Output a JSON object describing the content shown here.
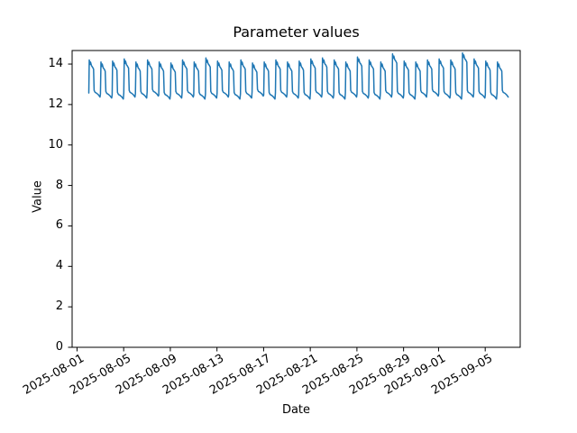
{
  "window": {
    "background": "#ffffff"
  },
  "chart_data": {
    "type": "line",
    "title": "Parameter values",
    "xlabel": "Date",
    "ylabel": "Value",
    "grid": false,
    "legend_position": "none",
    "line_color": "#1f77b4",
    "line_width": 1.5,
    "axes_color": "#000000",
    "x_origin_date": "2025-08-01",
    "xlim_days": [
      -0.42,
      38.0
    ],
    "ylim": [
      0,
      14.67
    ],
    "yticks": [
      0,
      2,
      4,
      6,
      8,
      10,
      12,
      14
    ],
    "xticks": [
      {
        "day": 0,
        "label": "2025-08-01"
      },
      {
        "day": 4,
        "label": "2025-08-05"
      },
      {
        "day": 8,
        "label": "2025-08-09"
      },
      {
        "day": 12,
        "label": "2025-08-13"
      },
      {
        "day": 16,
        "label": "2025-08-17"
      },
      {
        "day": 20,
        "label": "2025-08-21"
      },
      {
        "day": 24,
        "label": "2025-08-25"
      },
      {
        "day": 28,
        "label": "2025-08-29"
      },
      {
        "day": 31,
        "label": "2025-09-01"
      },
      {
        "day": 35,
        "label": "2025-09-05"
      }
    ],
    "series": [
      {
        "name": "parameter-values",
        "start_day_offset": 1,
        "day_shape": [
          {
            "f": 0.01,
            "ref": "low",
            "d": 0.02
          },
          {
            "f": 0.05,
            "ref": "peak",
            "d": 0.0
          },
          {
            "f": 0.1,
            "ref": "peak",
            "d": -0.22
          },
          {
            "f": 0.16,
            "ref": "peak",
            "d": -0.1
          },
          {
            "f": 0.24,
            "ref": "peak",
            "d": -0.28
          },
          {
            "f": 0.33,
            "ref": "peak",
            "d": -0.35
          },
          {
            "f": 0.42,
            "ref": "peak",
            "d": -0.45
          },
          {
            "f": 0.47,
            "ref": "low",
            "d": 0.15
          },
          {
            "f": 0.55,
            "ref": "low",
            "d": 0.05
          },
          {
            "f": 0.7,
            "ref": "low",
            "d": 0.0
          },
          {
            "f": 0.85,
            "ref": "low",
            "d": -0.08
          },
          {
            "f": 0.97,
            "ref": "low",
            "d": -0.18
          }
        ],
        "daily": [
          {
            "date": "2025-08-02",
            "peak": 14.2,
            "low": 12.55
          },
          {
            "date": "2025-08-03",
            "peak": 14.1,
            "low": 12.5
          },
          {
            "date": "2025-08-04",
            "peak": 14.15,
            "low": 12.45
          },
          {
            "date": "2025-08-05",
            "peak": 14.25,
            "low": 12.55
          },
          {
            "date": "2025-08-06",
            "peak": 14.1,
            "low": 12.5
          },
          {
            "date": "2025-08-07",
            "peak": 14.2,
            "low": 12.6
          },
          {
            "date": "2025-08-08",
            "peak": 14.1,
            "low": 12.45
          },
          {
            "date": "2025-08-09",
            "peak": 14.05,
            "low": 12.5
          },
          {
            "date": "2025-08-10",
            "peak": 14.2,
            "low": 12.55
          },
          {
            "date": "2025-08-11",
            "peak": 14.1,
            "low": 12.45
          },
          {
            "date": "2025-08-12",
            "peak": 14.3,
            "low": 12.5
          },
          {
            "date": "2025-08-13",
            "peak": 14.15,
            "low": 12.55
          },
          {
            "date": "2025-08-14",
            "peak": 14.1,
            "low": 12.45
          },
          {
            "date": "2025-08-15",
            "peak": 14.2,
            "low": 12.5
          },
          {
            "date": "2025-08-16",
            "peak": 14.05,
            "low": 12.6
          },
          {
            "date": "2025-08-17",
            "peak": 14.1,
            "low": 12.45
          },
          {
            "date": "2025-08-18",
            "peak": 14.2,
            "low": 12.55
          },
          {
            "date": "2025-08-19",
            "peak": 14.1,
            "low": 12.5
          },
          {
            "date": "2025-08-20",
            "peak": 14.15,
            "low": 12.45
          },
          {
            "date": "2025-08-21",
            "peak": 14.25,
            "low": 12.55
          },
          {
            "date": "2025-08-22",
            "peak": 14.3,
            "low": 12.5
          },
          {
            "date": "2025-08-23",
            "peak": 14.2,
            "low": 12.45
          },
          {
            "date": "2025-08-24",
            "peak": 14.1,
            "low": 12.55
          },
          {
            "date": "2025-08-25",
            "peak": 14.35,
            "low": 12.5
          },
          {
            "date": "2025-08-26",
            "peak": 14.2,
            "low": 12.45
          },
          {
            "date": "2025-08-27",
            "peak": 14.1,
            "low": 12.55
          },
          {
            "date": "2025-08-28",
            "peak": 14.5,
            "low": 12.5
          },
          {
            "date": "2025-08-29",
            "peak": 14.15,
            "low": 12.45
          },
          {
            "date": "2025-08-30",
            "peak": 14.1,
            "low": 12.55
          },
          {
            "date": "2025-08-31",
            "peak": 14.2,
            "low": 12.6
          },
          {
            "date": "2025-09-01",
            "peak": 14.25,
            "low": 12.5
          },
          {
            "date": "2025-09-02",
            "peak": 14.2,
            "low": 12.45
          },
          {
            "date": "2025-09-03",
            "peak": 14.55,
            "low": 12.55
          },
          {
            "date": "2025-09-04",
            "peak": 14.25,
            "low": 12.5
          },
          {
            "date": "2025-09-05",
            "peak": 14.15,
            "low": 12.45
          },
          {
            "date": "2025-09-06",
            "peak": 14.1,
            "low": 12.55
          }
        ]
      }
    ]
  }
}
